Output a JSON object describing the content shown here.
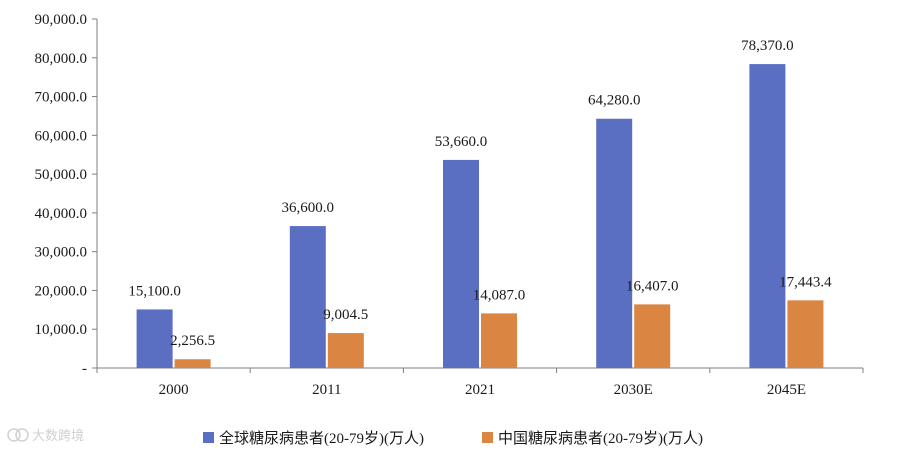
{
  "chart_data": {
    "type": "bar",
    "categories": [
      "2000",
      "2011",
      "2021",
      "2030E",
      "2045E"
    ],
    "series": [
      {
        "name": "全球糖尿病患者(20-79岁)(万人)",
        "color": "#5B6FC2",
        "values": [
          15100.0,
          36600.0,
          53660.0,
          64280.0,
          78370.0
        ],
        "labels": [
          "15,100.0",
          "36,600.0",
          "53,660.0",
          "64,280.0",
          "78,370.0"
        ]
      },
      {
        "name": "中国糖尿病患者(20-79岁)(万人)",
        "color": "#DA8542",
        "values": [
          2256.5,
          9004.5,
          14087.0,
          16407.0,
          17443.4
        ],
        "labels": [
          "2,256.5",
          "9,004.5",
          "14,087.0",
          "16,407.0",
          "17,443.4"
        ]
      }
    ],
    "ylim": [
      0,
      90000
    ],
    "yticks": [
      0,
      10000,
      20000,
      30000,
      40000,
      50000,
      60000,
      70000,
      80000,
      90000
    ],
    "ytick_labels": [
      "-",
      "10,000.0",
      "20,000.0",
      "30,000.0",
      "40,000.0",
      "50,000.0",
      "60,000.0",
      "70,000.0",
      "80,000.0",
      "90,000.0"
    ],
    "grid": false,
    "legend_position": "bottom"
  },
  "watermark": {
    "text": "大数跨境"
  }
}
